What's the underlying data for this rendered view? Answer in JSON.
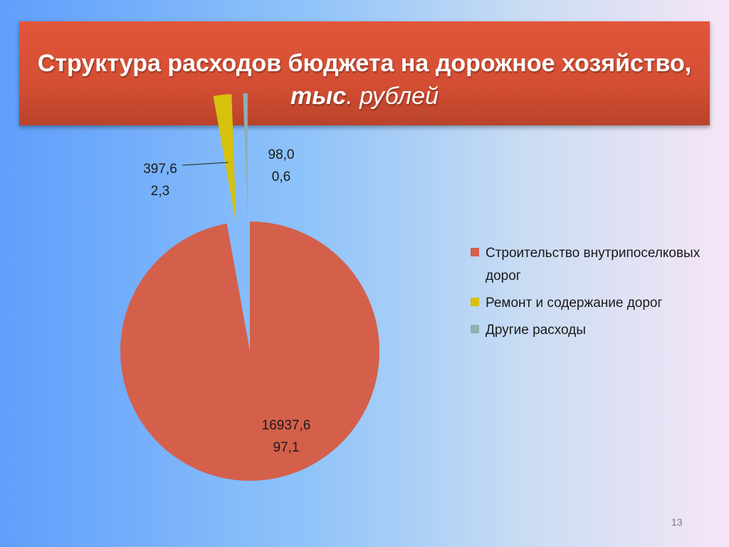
{
  "title": {
    "line1": "Структура расходов бюджета на дорожное хозяйство,",
    "line2_bold": "тыс",
    "line2_rest": ". рублей"
  },
  "chart_data": {
    "type": "pie",
    "title": "Структура расходов бюджета на дорожное хозяйство, тыс. рублей",
    "categories": [
      "Строительство внутрипоселковых дорог",
      "Ремонт и содержание дорог",
      "Другие расходы"
    ],
    "values": [
      16937.6,
      397.6,
      98.0
    ],
    "percents": [
      97.1,
      2.3,
      0.6
    ],
    "value_labels": [
      "16937,6",
      "397,6",
      "98,0"
    ],
    "percent_labels": [
      "97,1",
      "2,3",
      "0,6"
    ],
    "colors": [
      "#d4604b",
      "#d6c10d",
      "#8fb0b3"
    ],
    "legend_position": "right"
  },
  "legend": {
    "items": [
      {
        "label": "Строительство внутрипоселковых дорог",
        "color": "#d4604b"
      },
      {
        "label": "Ремонт и содержание дорог",
        "color": "#d6c10d"
      },
      {
        "label": "Другие расходы",
        "color": "#8fb0b3"
      }
    ]
  },
  "page_number": "13"
}
